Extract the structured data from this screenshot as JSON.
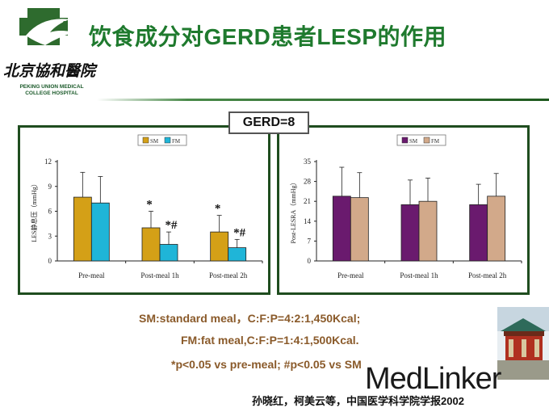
{
  "header": {
    "title": "饮食成分对GERD患者LESP的作用",
    "hospital_name_cn": "北京協和醫院",
    "hospital_name_en_line1": "PEKING UNION MEDICAL",
    "hospital_name_en_line2": "COLLEGE HOSPITAL"
  },
  "gerd_label": "GERD=8",
  "colors": {
    "title_green": "#1f7a2e",
    "panel_border": "#1f4d1f",
    "sm_left": "#d4a017",
    "fm_left": "#1fb5d8",
    "sm_right": "#6a1a6e",
    "fm_right": "#d2a98a",
    "note_brown": "#8a5a2a"
  },
  "chart_data": [
    {
      "type": "bar",
      "ylabel": "LES静息压（mmHg）",
      "ylim": [
        0,
        12
      ],
      "yticks": [
        0,
        3,
        6,
        9,
        12
      ],
      "categories": [
        "Pre-meal",
        "Post-meal 1h",
        "Post-meal 2h"
      ],
      "legend": [
        "SM",
        "FM"
      ],
      "legend_position": "top-center",
      "series": [
        {
          "name": "SM",
          "values": [
            7.7,
            4.0,
            3.5
          ],
          "errors": [
            3.0,
            2.0,
            2.0
          ]
        },
        {
          "name": "FM",
          "values": [
            7.0,
            2.0,
            1.6
          ],
          "errors": [
            3.2,
            1.5,
            1.0
          ]
        }
      ],
      "annotations": [
        {
          "category": 1,
          "series": 0,
          "text": "*"
        },
        {
          "category": 1,
          "series": 1,
          "text": "*#"
        },
        {
          "category": 2,
          "series": 0,
          "text": "*"
        },
        {
          "category": 2,
          "series": 1,
          "text": "*#"
        }
      ]
    },
    {
      "type": "bar",
      "ylabel": "Post-LESRA（mmHg）",
      "ylim": [
        0,
        35
      ],
      "yticks": [
        0,
        7,
        14,
        21,
        28,
        35
      ],
      "categories": [
        "Pre-meal",
        "Post-meal 1h",
        "Post-meal 2h"
      ],
      "legend": [
        "SM",
        "FM"
      ],
      "legend_position": "top-center",
      "series": [
        {
          "name": "SM",
          "values": [
            22.8,
            19.8,
            19.8
          ],
          "errors": [
            10.2,
            8.7,
            7.2
          ]
        },
        {
          "name": "FM",
          "values": [
            22.3,
            21.0,
            22.8
          ],
          "errors": [
            8.8,
            8.2,
            8.0
          ]
        }
      ],
      "annotations": []
    }
  ],
  "notes": {
    "line1": "SM:standard meal，C:F:P=4:2:1,450Kcal;",
    "line2": "FM:fat meal,C:F:P=1:4:1,500Kcal.",
    "line3": "*p<0.05 vs pre-meal; #p<0.05 vs SM"
  },
  "citation": "孙晓红，柯美云等，中国医学科学院学报2002",
  "watermark": "MedLinker"
}
